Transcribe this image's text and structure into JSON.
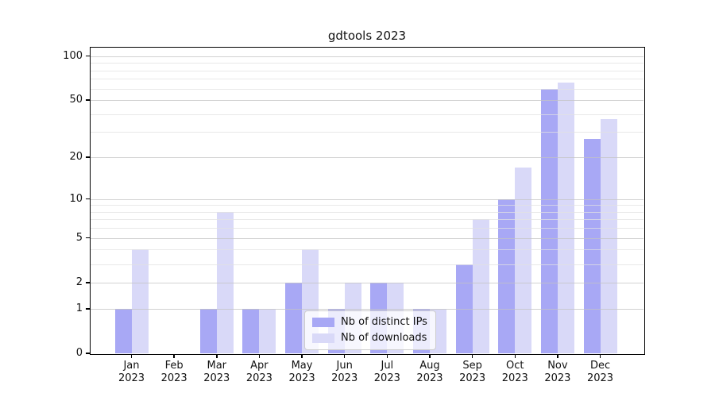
{
  "title": "gdtools 2023",
  "colors": {
    "ips": "#a8a8f5",
    "downloads": "#d9d9f8",
    "axis": "#000000",
    "grid_major": "#c3c3c3",
    "grid_minor": "#e1e1e1",
    "legend_border": "#cccccc"
  },
  "legend": {
    "items": [
      {
        "label": "Nb of distinct IPs",
        "color_key": "ips"
      },
      {
        "label": "Nb of downloads",
        "color_key": "downloads"
      }
    ]
  },
  "y_axis": {
    "tick_labels": [
      "100",
      "50",
      "20",
      "10",
      "5",
      "2",
      "1",
      "0"
    ],
    "tick_values": [
      100,
      50,
      20,
      10,
      5,
      2,
      1,
      0
    ]
  },
  "x_axis": {
    "months": [
      "Jan",
      "Feb",
      "Mar",
      "Apr",
      "May",
      "Jun",
      "Jul",
      "Aug",
      "Sep",
      "Oct",
      "Nov",
      "Dec"
    ],
    "year": "2023"
  },
  "chart_data": {
    "type": "bar",
    "title": "gdtools 2023",
    "categories": [
      "Jan 2023",
      "Feb 2023",
      "Mar 2023",
      "Apr 2023",
      "May 2023",
      "Jun 2023",
      "Jul 2023",
      "Aug 2023",
      "Sep 2023",
      "Oct 2023",
      "Nov 2023",
      "Dec 2023"
    ],
    "series": [
      {
        "name": "Nb of distinct IPs",
        "color_key": "ips",
        "values": [
          1,
          0,
          1,
          1,
          2,
          1,
          2,
          1,
          3,
          10,
          60,
          27
        ]
      },
      {
        "name": "Nb of downloads",
        "color_key": "downloads",
        "values": [
          4,
          0,
          8,
          1,
          4,
          2,
          2,
          1,
          7,
          17,
          66,
          37
        ]
      }
    ],
    "scale": "log1p",
    "ylim": [
      0,
      100
    ],
    "yticks": [
      0,
      1,
      2,
      5,
      10,
      20,
      50,
      100
    ],
    "minor_gridlines": [
      3,
      4,
      6,
      7,
      8,
      9,
      30,
      40,
      60,
      70,
      80,
      90
    ],
    "grid": "horizontal",
    "legend_position": "lower center-right inside plot"
  }
}
